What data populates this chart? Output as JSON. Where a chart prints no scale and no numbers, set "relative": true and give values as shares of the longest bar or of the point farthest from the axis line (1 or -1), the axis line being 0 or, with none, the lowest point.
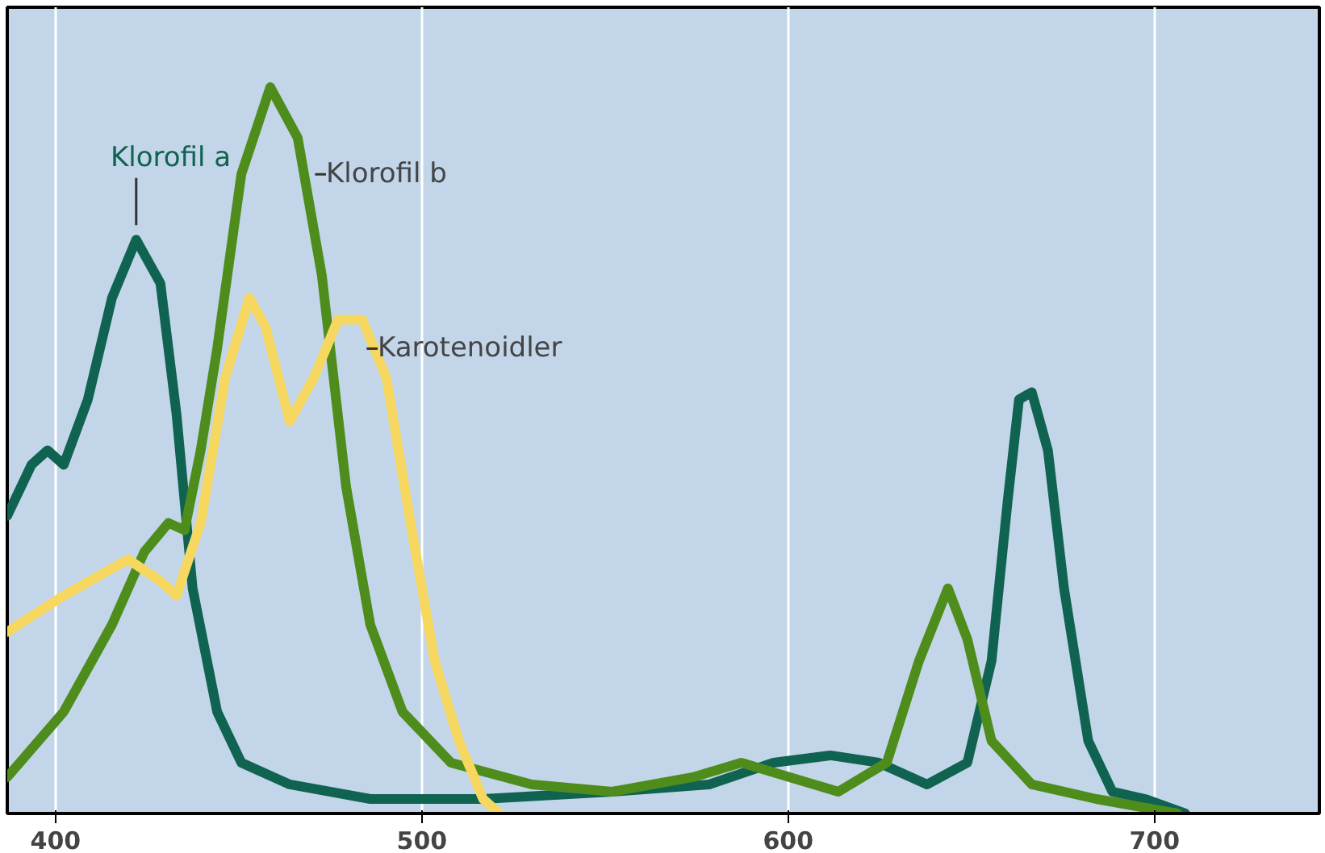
{
  "chart_data": {
    "type": "line",
    "relative": true,
    "xlim": [
      386.8,
      745
    ],
    "xticks": [
      400,
      500,
      600,
      700
    ],
    "grid": "x",
    "tick_labels": "x",
    "marker": "none",
    "line_style": "solid",
    "series": [
      {
        "name": "Klorofil a",
        "color": "#0f6350",
        "x": [
          386.8,
          393.4,
          397.8,
          402.2,
          408.8,
          415.4,
          422.0,
          428.6,
          433.0,
          437.4,
          444.1,
          450.7,
          463.9,
          485.9,
          516.7,
          551.9,
          578.4,
          596.0,
          611.5,
          624.7,
          637.9,
          648.9,
          655.5,
          659.9,
          663.0,
          666.5,
          670.9,
          675.3,
          681.9,
          688.5,
          697.4,
          708.4
        ],
        "values": [
          0.41,
          0.48,
          0.5,
          0.48,
          0.57,
          0.71,
          0.79,
          0.73,
          0.55,
          0.31,
          0.14,
          0.07,
          0.04,
          0.02,
          0.02,
          0.03,
          0.04,
          0.07,
          0.08,
          0.07,
          0.04,
          0.07,
          0.21,
          0.43,
          0.57,
          0.58,
          0.5,
          0.31,
          0.1,
          0.03,
          0.02,
          0.0
        ]
      },
      {
        "name": "Klorofil b",
        "color": "#4e8c1c",
        "x": [
          386.8,
          402.2,
          415.4,
          424.2,
          430.8,
          435.2,
          439.6,
          444.1,
          450.7,
          458.6,
          466.1,
          472.7,
          479.3,
          485.9,
          494.7,
          507.9,
          530.0,
          551.9,
          574.0,
          587.2,
          600.4,
          613.7,
          626.9,
          635.7,
          643.6,
          648.9,
          655.5,
          666.5,
          684.1,
          706.2
        ],
        "values": [
          0.05,
          0.14,
          0.26,
          0.36,
          0.4,
          0.39,
          0.5,
          0.64,
          0.88,
          1.0,
          0.93,
          0.74,
          0.45,
          0.26,
          0.14,
          0.07,
          0.04,
          0.03,
          0.05,
          0.07,
          0.05,
          0.03,
          0.07,
          0.21,
          0.31,
          0.24,
          0.1,
          0.04,
          0.02,
          0.0
        ]
      },
      {
        "name": "Karotenoidler",
        "color": "#f6d860",
        "x": [
          386.8,
          402.2,
          419.8,
          428.6,
          433.0,
          439.6,
          446.3,
          452.9,
          457.3,
          463.9,
          470.5,
          477.1,
          483.7,
          490.3,
          496.9,
          503.5,
          510.1,
          516.7,
          521.1
        ],
        "values": [
          0.25,
          0.3,
          0.35,
          0.32,
          0.3,
          0.4,
          0.6,
          0.71,
          0.67,
          0.54,
          0.6,
          0.68,
          0.68,
          0.6,
          0.4,
          0.21,
          0.1,
          0.02,
          0.0
        ]
      }
    ]
  }
}
